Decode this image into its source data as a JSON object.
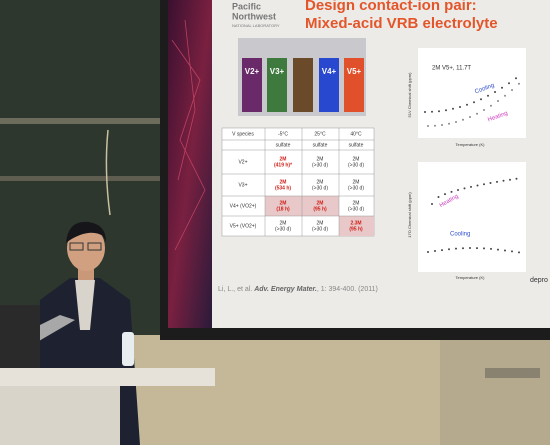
{
  "logo": {
    "line1": "Pacific",
    "line2": "Northwest",
    "line3": "NATIONAL LABORATORY"
  },
  "slide": {
    "title_line1": "Design contact-ion pair:",
    "title_line2": "Mixed-acid VRB electrolyte",
    "vials": [
      "V2+",
      "V3+",
      "V4+",
      "V5+"
    ],
    "table": {
      "header": [
        "V species",
        "-5°C",
        "25°C",
        "40°C"
      ],
      "subheader": [
        "sulfate",
        "sulfate",
        "sulfate"
      ],
      "rows": [
        [
          "V2+",
          "2M",
          "(419 h)*",
          "2M",
          "(>30 d)",
          "2M",
          "(>30 d)"
        ],
        [
          "V3+",
          "2M",
          "(534 h)",
          "2M",
          "(>30 d)",
          "2M",
          "(>30 d)"
        ],
        [
          "V4+ (VO2+)",
          "2M",
          "(18 h)",
          "2M",
          "(95 h)",
          "2M",
          "(>30 d)"
        ],
        [
          "V5+ (VO2+)",
          "2M",
          "(>30 d)",
          "2M",
          "(>30 d)",
          "2.3M",
          "(95 h)"
        ]
      ]
    },
    "chart1": {
      "label": "2M V5+, 11.7T",
      "cooling": "Cooling",
      "heating": "Heating",
      "ylabel": "51V Chemical shift (ppm)",
      "xlabel": "Temperature (K)"
    },
    "chart2": {
      "cooling": "Cooling",
      "heating": "Heating",
      "ylabel": "17O Chemical shift (ppm)",
      "xlabel": "Temperature (K)"
    },
    "citation_authors": "Li, L., et al.",
    "citation_journal": "Adv. Energy Mater.",
    "citation_rest": ", 1: 394-400. (2011)",
    "side_text": "depro"
  }
}
